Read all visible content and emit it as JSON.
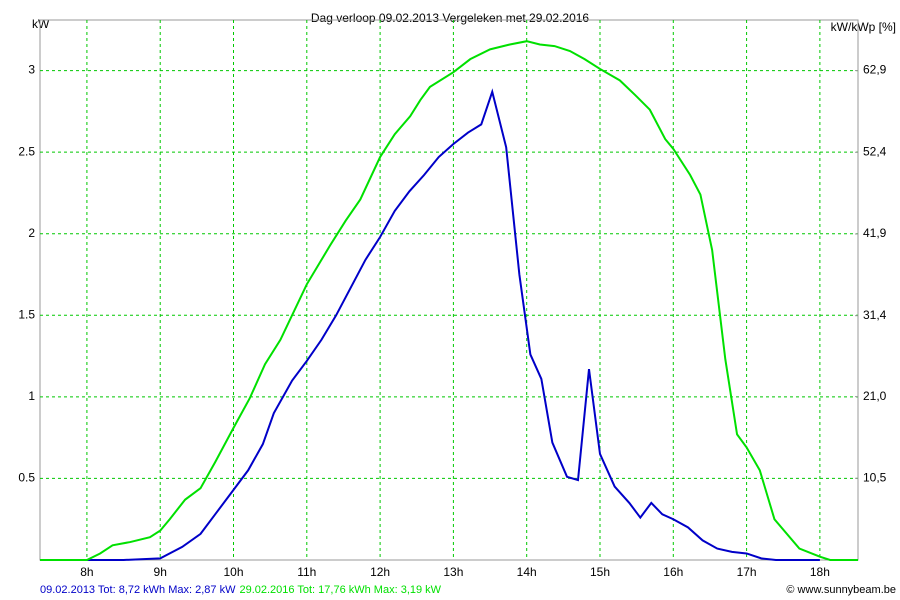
{
  "chart_data": {
    "type": "line",
    "title": "Dag  verloop 09.02.2013   Vergeleken met 29.02.2016",
    "y_label": "kW",
    "y2_label": "kW/kWp [%]",
    "credit": "© www.sunnybeam.be",
    "grid": true,
    "xlim": [
      7.36,
      18.52
    ],
    "xticks": [
      {
        "value": 8,
        "label": "8h"
      },
      {
        "value": 9,
        "label": "9h"
      },
      {
        "value": 10,
        "label": "10h"
      },
      {
        "value": 11,
        "label": "11h"
      },
      {
        "value": 12,
        "label": "12h"
      },
      {
        "value": 13,
        "label": "13h"
      },
      {
        "value": 14,
        "label": "14h"
      },
      {
        "value": 15,
        "label": "15h"
      },
      {
        "value": 16,
        "label": "16h"
      },
      {
        "value": 17,
        "label": "17h"
      },
      {
        "value": 18,
        "label": "18h"
      }
    ],
    "ylim": [
      0,
      3.31
    ],
    "yticks": [
      0.5,
      1,
      1.5,
      2,
      2.5,
      3
    ],
    "y2lim": [
      0,
      69.4
    ],
    "y2ticks": [
      {
        "value": 10.5,
        "label": "10,5"
      },
      {
        "value": 21.0,
        "label": "21,0"
      },
      {
        "value": 31.4,
        "label": "31,4"
      },
      {
        "value": 41.9,
        "label": "41,9"
      },
      {
        "value": 52.4,
        "label": "52,4"
      },
      {
        "value": 62.9,
        "label": "62,9"
      }
    ],
    "series": [
      {
        "name": "09.02.2013 Tot: 8,72 kWh Max: 2,87 kW",
        "color": "#0000c8",
        "x": [
          7.5,
          8.0,
          8.5,
          9.0,
          9.3,
          9.55,
          9.75,
          10.0,
          10.2,
          10.4,
          10.55,
          10.8,
          11.0,
          11.2,
          11.4,
          11.6,
          11.8,
          12.0,
          12.2,
          12.4,
          12.6,
          12.8,
          13.0,
          13.2,
          13.38,
          13.53,
          13.72,
          13.9,
          14.05,
          14.2,
          14.35,
          14.55,
          14.7,
          14.85,
          15.0,
          15.2,
          15.4,
          15.55,
          15.7,
          15.85,
          16.0,
          16.2,
          16.4,
          16.6,
          16.8,
          17.0,
          17.2,
          17.4,
          18.0
        ],
        "values": [
          0,
          0,
          0,
          0.01,
          0.08,
          0.16,
          0.28,
          0.43,
          0.55,
          0.71,
          0.9,
          1.1,
          1.22,
          1.35,
          1.5,
          1.67,
          1.84,
          1.98,
          2.14,
          2.26,
          2.36,
          2.47,
          2.55,
          2.62,
          2.67,
          2.87,
          2.53,
          1.75,
          1.26,
          1.11,
          0.72,
          0.51,
          0.49,
          1.17,
          0.65,
          0.45,
          0.35,
          0.26,
          0.35,
          0.28,
          0.25,
          0.2,
          0.12,
          0.07,
          0.05,
          0.04,
          0.01,
          0,
          0
        ]
      },
      {
        "name": "29.02.2016 Tot: 17,76 kWh Max: 3,19 kW",
        "color": "#00e000",
        "x": [
          7.36,
          8.0,
          8.18,
          8.35,
          8.59,
          8.86,
          9.0,
          9.13,
          9.34,
          9.55,
          9.75,
          10.0,
          10.22,
          10.43,
          10.64,
          11.0,
          11.32,
          11.53,
          11.73,
          12.0,
          12.2,
          12.41,
          12.55,
          12.68,
          13.0,
          13.23,
          13.5,
          13.77,
          14.0,
          14.18,
          14.38,
          14.59,
          14.79,
          15.0,
          15.27,
          15.48,
          15.68,
          15.89,
          16.0,
          16.23,
          16.37,
          16.53,
          16.71,
          16.87,
          17.0,
          17.18,
          17.38,
          17.72,
          18.0,
          18.14,
          18.52
        ],
        "values": [
          0,
          0,
          0.04,
          0.09,
          0.11,
          0.14,
          0.18,
          0.25,
          0.37,
          0.44,
          0.6,
          0.81,
          0.99,
          1.2,
          1.35,
          1.69,
          1.93,
          2.08,
          2.21,
          2.47,
          2.61,
          2.72,
          2.82,
          2.9,
          2.99,
          3.07,
          3.13,
          3.16,
          3.18,
          3.16,
          3.15,
          3.12,
          3.07,
          3.01,
          2.94,
          2.85,
          2.76,
          2.58,
          2.52,
          2.36,
          2.24,
          1.9,
          1.23,
          0.77,
          0.69,
          0.55,
          0.25,
          0.07,
          0.02,
          0,
          0
        ]
      }
    ]
  }
}
